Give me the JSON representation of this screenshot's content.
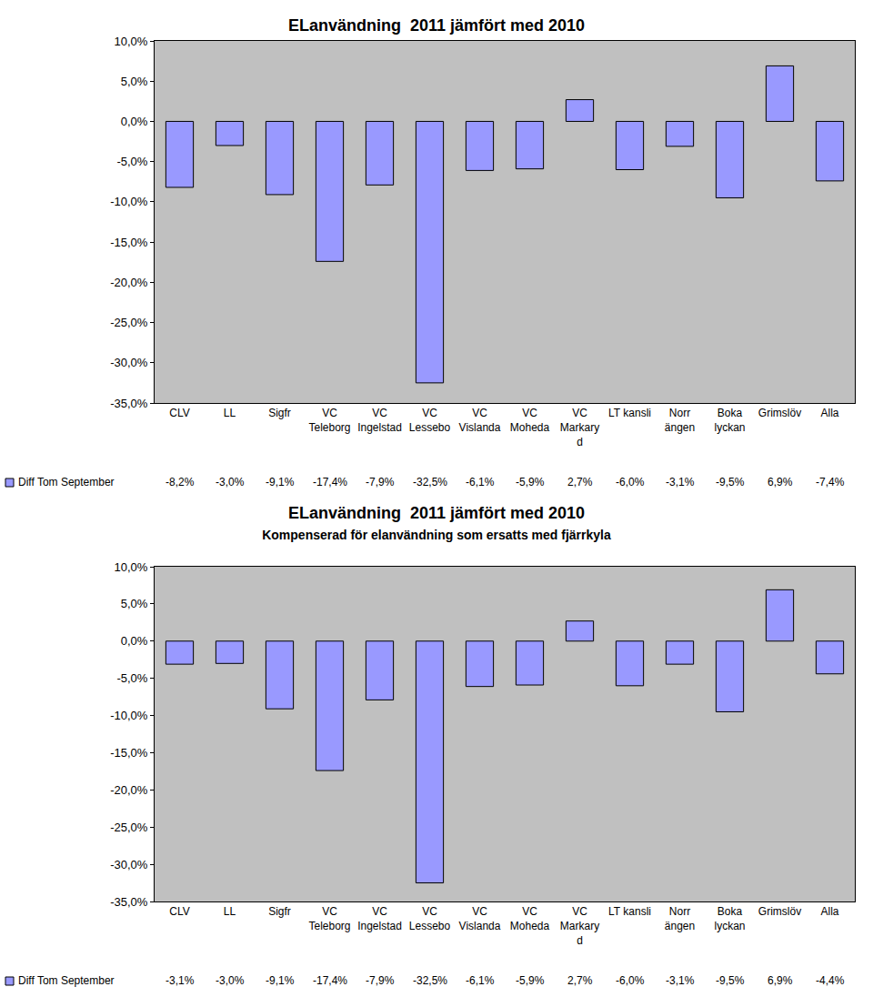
{
  "chart_data": [
    {
      "type": "bar",
      "title": "ELanvändning  2011 jämfört med 2010",
      "categories": [
        "CLV",
        "LL",
        "Sigfr",
        "VC\nTeleborg",
        "VC\nIngelstad",
        "VC\nLessebo",
        "VC\nVislanda",
        "VC\nMoheda",
        "VC\nMarkary\nd",
        "LT kansli",
        "Norr\nängen",
        "Boka\nlyckan",
        "Grimslöv",
        "Alla"
      ],
      "series": [
        {
          "name": "Diff Tom September",
          "color": "#9999ff",
          "values": [
            -8.2,
            -3.0,
            -9.1,
            -17.4,
            -7.9,
            -32.5,
            -6.1,
            -5.9,
            2.7,
            -6.0,
            -3.1,
            -9.5,
            6.9,
            -7.4
          ],
          "value_labels": [
            "-8,2%",
            "-3,0%",
            "-9,1%",
            "-17,4%",
            "-7,9%",
            "-32,5%",
            "-6,1%",
            "-5,9%",
            "2,7%",
            "-6,0%",
            "-3,1%",
            "-9,5%",
            "6,9%",
            "-7,4%"
          ]
        }
      ],
      "ylim": [
        -35,
        10
      ],
      "yticks": [
        {
          "value": 10,
          "label": "10,0%"
        },
        {
          "value": 5,
          "label": "5,0%"
        },
        {
          "value": 0,
          "label": "0,0%"
        },
        {
          "value": -5,
          "label": "-5,0%"
        },
        {
          "value": -10,
          "label": "-10,0%"
        },
        {
          "value": -15,
          "label": "-15,0%"
        },
        {
          "value": -20,
          "label": "-20,0%"
        },
        {
          "value": -25,
          "label": "-25,0%"
        },
        {
          "value": -30,
          "label": "-30,0%"
        },
        {
          "value": -35,
          "label": "-35,0%"
        }
      ],
      "grid": false
    },
    {
      "type": "bar",
      "title": "ELanvändning  2011 jämfört med 2010",
      "subtitle": "Kompenserad för elanvändning som ersatts med fjärrkyla",
      "categories": [
        "CLV",
        "LL",
        "Sigfr",
        "VC\nTeleborg",
        "VC\nIngelstad",
        "VC\nLessebo",
        "VC\nVislanda",
        "VC\nMoheda",
        "VC\nMarkary\nd",
        "LT kansli",
        "Norr\nängen",
        "Boka\nlyckan",
        "Grimslöv",
        "Alla"
      ],
      "series": [
        {
          "name": "Diff Tom September",
          "color": "#9999ff",
          "values": [
            -3.1,
            -3.0,
            -9.1,
            -17.4,
            -7.9,
            -32.5,
            -6.1,
            -5.9,
            2.7,
            -6.0,
            -3.1,
            -9.5,
            6.9,
            -4.4
          ],
          "value_labels": [
            "-3,1%",
            "-3,0%",
            "-9,1%",
            "-17,4%",
            "-7,9%",
            "-32,5%",
            "-6,1%",
            "-5,9%",
            "2,7%",
            "-6,0%",
            "-3,1%",
            "-9,5%",
            "6,9%",
            "-4,4%"
          ]
        }
      ],
      "ylim": [
        -35,
        10
      ],
      "yticks": [
        {
          "value": 10,
          "label": "10,0%"
        },
        {
          "value": 5,
          "label": "5,0%"
        },
        {
          "value": 0,
          "label": "0,0%"
        },
        {
          "value": -5,
          "label": "-5,0%"
        },
        {
          "value": -10,
          "label": "-10,0%"
        },
        {
          "value": -15,
          "label": "-15,0%"
        },
        {
          "value": -20,
          "label": "-20,0%"
        },
        {
          "value": -25,
          "label": "-25,0%"
        },
        {
          "value": -30,
          "label": "-30,0%"
        },
        {
          "value": -35,
          "label": "-35,0%"
        }
      ],
      "grid": false
    }
  ]
}
